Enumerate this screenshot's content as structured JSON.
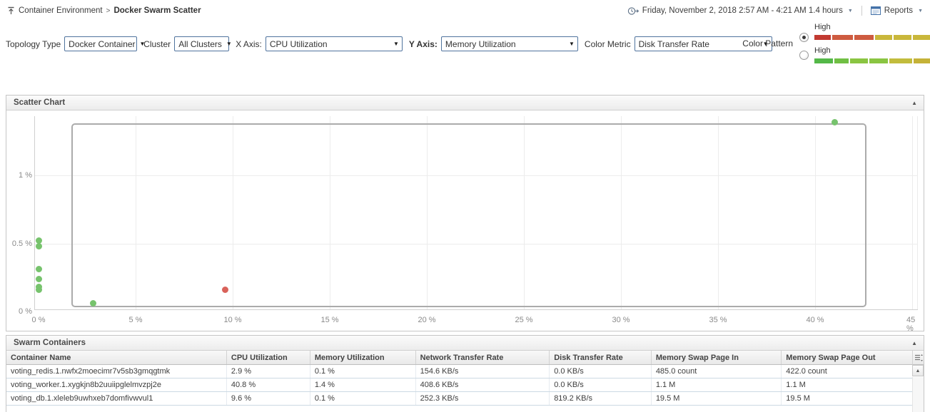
{
  "breadcrumb": {
    "parent": "Container Environment",
    "separator": ">",
    "current": "Docker Swarm Scatter"
  },
  "time_selector": {
    "label": "Friday, November 2, 2018 2:57 AM - 4:21 AM 1.4 hours"
  },
  "reports": {
    "label": "Reports"
  },
  "filters": {
    "topology_type_label": "Topology Type",
    "topology_type_value": "Docker Container",
    "cluster_label": "Cluster",
    "cluster_value": "All Clusters",
    "x_axis_label": "X Axis:",
    "x_axis_value": "CPU Utilization",
    "y_axis_label": "Y Axis:",
    "y_axis_value": "Memory Utilization",
    "color_metric_label": "Color Metric",
    "color_metric_value": "Disk Transfer Rate",
    "color_pattern_label": "Color Pattern"
  },
  "color_patterns": [
    {
      "label": "High",
      "selected": true,
      "segments": [
        {
          "color": "#c23a31",
          "width": 15
        },
        {
          "color": "#ce5b40",
          "width": 19
        },
        {
          "color": "#ce5b40",
          "width": 18
        },
        {
          "color": "#c9b73b",
          "width": 16
        },
        {
          "color": "#c9b73b",
          "width": 16
        },
        {
          "color": "#c9b73b",
          "width": 16
        }
      ]
    },
    {
      "label": "High",
      "selected": false,
      "segments": [
        {
          "color": "#54b848",
          "width": 17
        },
        {
          "color": "#70bf44",
          "width": 13
        },
        {
          "color": "#8ac542",
          "width": 17
        },
        {
          "color": "#8ac542",
          "width": 17
        },
        {
          "color": "#c2bc3d",
          "width": 21
        },
        {
          "color": "#c5b238",
          "width": 15
        }
      ]
    }
  ],
  "scatter_panel": {
    "title": "Scatter Chart"
  },
  "chart_data": {
    "type": "scatter",
    "title": "Scatter Chart",
    "xlabel": "CPU Utilization",
    "ylabel": "Memory Utilization",
    "x_ticks": [
      "0 %",
      "5 %",
      "10 %",
      "15 %",
      "20 %",
      "25 %",
      "30 %",
      "35 %",
      "40 %",
      "45 %"
    ],
    "y_ticks": [
      "0 %",
      "0.5 %",
      "1 %"
    ],
    "xlim": [
      0,
      45.5
    ],
    "ylim": [
      0,
      1.44
    ],
    "grid": true,
    "legend_position": "none",
    "point_colors": {
      "low": "#77c36d",
      "high": "#d9625a"
    },
    "points": [
      {
        "x": 0,
        "y": 0.52,
        "color": "#77c36d"
      },
      {
        "x": 0,
        "y": 0.48,
        "color": "#77c36d"
      },
      {
        "x": 0,
        "y": 0.31,
        "color": "#77c36d"
      },
      {
        "x": 0,
        "y": 0.24,
        "color": "#77c36d"
      },
      {
        "x": 0,
        "y": 0.18,
        "color": "#77c36d"
      },
      {
        "x": 0,
        "y": 0.16,
        "color": "#77c36d"
      },
      {
        "x": 2.8,
        "y": 0.06,
        "color": "#77c36d"
      },
      {
        "x": 9.6,
        "y": 0.16,
        "color": "#d9625a"
      },
      {
        "x": 41.0,
        "y": 1.39,
        "color": "#77c36d"
      }
    ],
    "selection_rect": {
      "x1": 1.7,
      "y1": 0.05,
      "x2": 42.5,
      "y2": 1.38
    }
  },
  "table_panel": {
    "title": "Swarm Containers",
    "columns": [
      "Container Name",
      "CPU Utilization",
      "Memory Utilization",
      "Network Transfer Rate",
      "Disk Transfer Rate",
      "Memory Swap Page In",
      "Memory Swap Page Out"
    ],
    "rows": [
      [
        "voting_redis.1.nwfx2moecimr7v5sb3gmqgtmk",
        "2.9 %",
        "0.1 %",
        "154.6 KB/s",
        "0.0 KB/s",
        "485.0 count",
        "422.0 count"
      ],
      [
        "voting_worker.1.xygkjn8b2uuiipglelmvzpj2e",
        "40.8 %",
        "1.4 %",
        "408.6 KB/s",
        "0.0 KB/s",
        "1.1 M",
        "1.1 M"
      ],
      [
        "voting_db.1.xleleb9uwhxeb7domfivwvul1",
        "9.6 %",
        "0.1 %",
        "252.3 KB/s",
        "819.2 KB/s",
        "19.5 M",
        "19.5 M"
      ]
    ]
  }
}
